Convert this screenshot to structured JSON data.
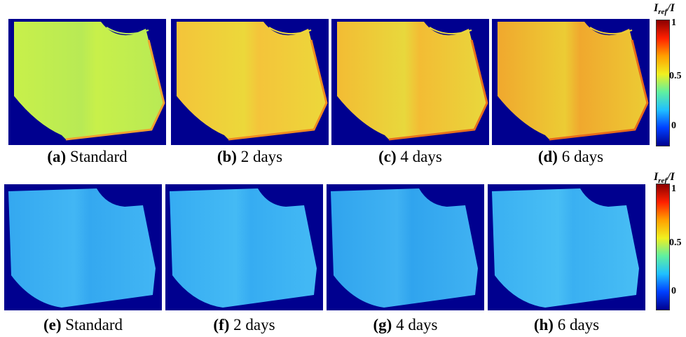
{
  "rows": [
    {
      "name": "top",
      "panels": [
        {
          "label": "(a)",
          "caption": "Standard",
          "fill": "#c8f04a",
          "fill2": "#b8ea55",
          "accent": "#f0a030"
        },
        {
          "label": "(b)",
          "caption": "2 days",
          "fill": "#f4c43a",
          "fill2": "#ecd83a",
          "accent": "#f08a20"
        },
        {
          "label": "(c)",
          "caption": "4 days",
          "fill": "#f3bc34",
          "fill2": "#e8d83c",
          "accent": "#e8701c"
        },
        {
          "label": "(d)",
          "caption": "6 days",
          "fill": "#f0a82e",
          "fill2": "#eccc34",
          "accent": "#e86a1a"
        }
      ]
    },
    {
      "name": "bottom",
      "panels": [
        {
          "label": "(e)",
          "caption": "Standard",
          "fill": "#34a8f0",
          "fill2": "#42b6f4",
          "accent": "#48c0f0"
        },
        {
          "label": "(f)",
          "caption": "2 days",
          "fill": "#36acf2",
          "fill2": "#44baf4",
          "accent": "#48c0f0"
        },
        {
          "label": "(g)",
          "caption": "4 days",
          "fill": "#30a4ee",
          "fill2": "#40b2f2",
          "accent": "#48c0f0"
        },
        {
          "label": "(h)",
          "caption": "6 days",
          "fill": "#3ab0f2",
          "fill2": "#48bef4",
          "accent": "#48c0f0"
        }
      ]
    }
  ],
  "colorbar": {
    "title_main": "I",
    "title_sub": "ref",
    "title_tail": "/I",
    "ticks": [
      "1",
      "0.5",
      "0"
    ],
    "colors": [
      "#8b0000",
      "#ff2000",
      "#ffa000",
      "#f0f020",
      "#60f0a0",
      "#20c0ff",
      "#0040ff",
      "#00008f"
    ]
  }
}
